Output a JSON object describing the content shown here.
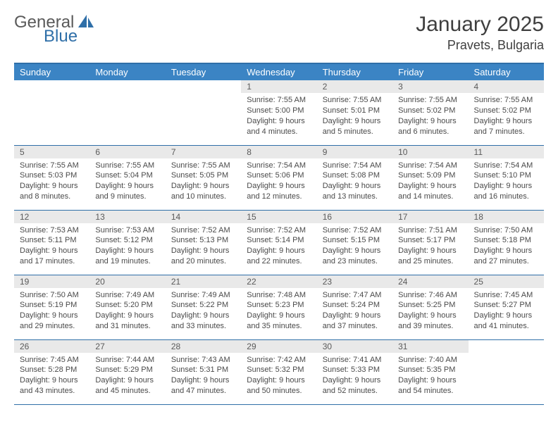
{
  "logo": {
    "general": "General",
    "blue": "Blue",
    "icon_color": "#2f6fa8"
  },
  "title": "January 2025",
  "location": "Pravets, Bulgaria",
  "colors": {
    "header_bg": "#3b84c4",
    "header_border": "#2f6fa8",
    "daynum_bg": "#e9e9e9",
    "cell_border": "#2f6fa8",
    "text": "#4a4a4a"
  },
  "weekdays": [
    "Sunday",
    "Monday",
    "Tuesday",
    "Wednesday",
    "Thursday",
    "Friday",
    "Saturday"
  ],
  "weeks": [
    [
      null,
      null,
      null,
      {
        "n": "1",
        "sr": "7:55 AM",
        "ss": "5:00 PM",
        "dh": "9",
        "dm": "4"
      },
      {
        "n": "2",
        "sr": "7:55 AM",
        "ss": "5:01 PM",
        "dh": "9",
        "dm": "5"
      },
      {
        "n": "3",
        "sr": "7:55 AM",
        "ss": "5:02 PM",
        "dh": "9",
        "dm": "6"
      },
      {
        "n": "4",
        "sr": "7:55 AM",
        "ss": "5:02 PM",
        "dh": "9",
        "dm": "7"
      }
    ],
    [
      {
        "n": "5",
        "sr": "7:55 AM",
        "ss": "5:03 PM",
        "dh": "9",
        "dm": "8"
      },
      {
        "n": "6",
        "sr": "7:55 AM",
        "ss": "5:04 PM",
        "dh": "9",
        "dm": "9"
      },
      {
        "n": "7",
        "sr": "7:55 AM",
        "ss": "5:05 PM",
        "dh": "9",
        "dm": "10"
      },
      {
        "n": "8",
        "sr": "7:54 AM",
        "ss": "5:06 PM",
        "dh": "9",
        "dm": "12"
      },
      {
        "n": "9",
        "sr": "7:54 AM",
        "ss": "5:08 PM",
        "dh": "9",
        "dm": "13"
      },
      {
        "n": "10",
        "sr": "7:54 AM",
        "ss": "5:09 PM",
        "dh": "9",
        "dm": "14"
      },
      {
        "n": "11",
        "sr": "7:54 AM",
        "ss": "5:10 PM",
        "dh": "9",
        "dm": "16"
      }
    ],
    [
      {
        "n": "12",
        "sr": "7:53 AM",
        "ss": "5:11 PM",
        "dh": "9",
        "dm": "17"
      },
      {
        "n": "13",
        "sr": "7:53 AM",
        "ss": "5:12 PM",
        "dh": "9",
        "dm": "19"
      },
      {
        "n": "14",
        "sr": "7:52 AM",
        "ss": "5:13 PM",
        "dh": "9",
        "dm": "20"
      },
      {
        "n": "15",
        "sr": "7:52 AM",
        "ss": "5:14 PM",
        "dh": "9",
        "dm": "22"
      },
      {
        "n": "16",
        "sr": "7:52 AM",
        "ss": "5:15 PM",
        "dh": "9",
        "dm": "23"
      },
      {
        "n": "17",
        "sr": "7:51 AM",
        "ss": "5:17 PM",
        "dh": "9",
        "dm": "25"
      },
      {
        "n": "18",
        "sr": "7:50 AM",
        "ss": "5:18 PM",
        "dh": "9",
        "dm": "27"
      }
    ],
    [
      {
        "n": "19",
        "sr": "7:50 AM",
        "ss": "5:19 PM",
        "dh": "9",
        "dm": "29"
      },
      {
        "n": "20",
        "sr": "7:49 AM",
        "ss": "5:20 PM",
        "dh": "9",
        "dm": "31"
      },
      {
        "n": "21",
        "sr": "7:49 AM",
        "ss": "5:22 PM",
        "dh": "9",
        "dm": "33"
      },
      {
        "n": "22",
        "sr": "7:48 AM",
        "ss": "5:23 PM",
        "dh": "9",
        "dm": "35"
      },
      {
        "n": "23",
        "sr": "7:47 AM",
        "ss": "5:24 PM",
        "dh": "9",
        "dm": "37"
      },
      {
        "n": "24",
        "sr": "7:46 AM",
        "ss": "5:25 PM",
        "dh": "9",
        "dm": "39"
      },
      {
        "n": "25",
        "sr": "7:45 AM",
        "ss": "5:27 PM",
        "dh": "9",
        "dm": "41"
      }
    ],
    [
      {
        "n": "26",
        "sr": "7:45 AM",
        "ss": "5:28 PM",
        "dh": "9",
        "dm": "43"
      },
      {
        "n": "27",
        "sr": "7:44 AM",
        "ss": "5:29 PM",
        "dh": "9",
        "dm": "45"
      },
      {
        "n": "28",
        "sr": "7:43 AM",
        "ss": "5:31 PM",
        "dh": "9",
        "dm": "47"
      },
      {
        "n": "29",
        "sr": "7:42 AM",
        "ss": "5:32 PM",
        "dh": "9",
        "dm": "50"
      },
      {
        "n": "30",
        "sr": "7:41 AM",
        "ss": "5:33 PM",
        "dh": "9",
        "dm": "52"
      },
      {
        "n": "31",
        "sr": "7:40 AM",
        "ss": "5:35 PM",
        "dh": "9",
        "dm": "54"
      },
      null
    ]
  ],
  "labels": {
    "sunrise": "Sunrise:",
    "sunset": "Sunset:",
    "daylight_prefix": "Daylight:",
    "hours_word": "hours",
    "and_word": "and",
    "minutes_word": "minutes."
  }
}
